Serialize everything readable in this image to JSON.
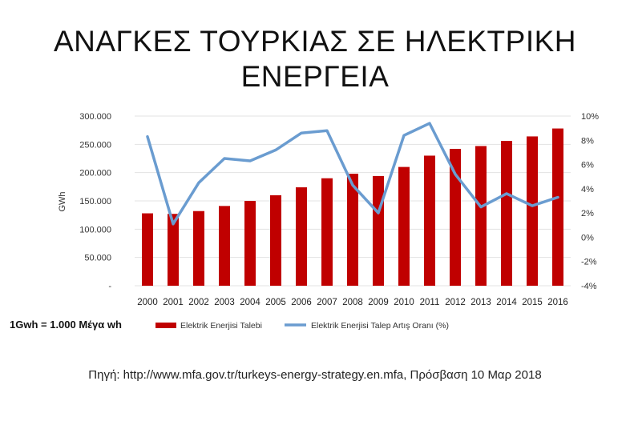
{
  "slide": {
    "title_line1": "ΑΝΑΓΚΕΣ ΤΟΥΡΚΙΑΣ ΣΕ ΗΛΕΚΤΡΙΚΗ",
    "title_line2": "ΕΝΕΡΓΕΙΑ",
    "note": "1Gwh = 1.000 Μέγα wh",
    "source": "Πηγή: http://www.mfa.gov.tr/turkeys-energy-strategy.en.mfa,  Πρόσβαση 10 Μαρ 2018"
  },
  "chart_data": {
    "type": "bar",
    "title": "",
    "xlabel": "",
    "ylabel": "GWh",
    "ylim": [
      0,
      300000
    ],
    "y2lim": [
      -4,
      10
    ],
    "grid": true,
    "legend_position": "bottom",
    "categories": [
      "2000",
      "2001",
      "2002",
      "2003",
      "2004",
      "2005",
      "2006",
      "2007",
      "2008",
      "2009",
      "2010",
      "2011",
      "2012",
      "2013",
      "2014",
      "2015",
      "2016"
    ],
    "y_ticks": [
      "300.000",
      "250.000",
      "200.000",
      "150.000",
      "100.000",
      "50.000",
      "-"
    ],
    "y2_ticks": [
      "10%",
      "8%",
      "6%",
      "4%",
      "2%",
      "0%",
      "-2%",
      "-4%"
    ],
    "series": [
      {
        "name": "Elektrik Enerjisi Talebi",
        "type": "bar",
        "axis": "left",
        "color": "#c00000",
        "values": [
          128000,
          127000,
          132000,
          141000,
          150000,
          160000,
          174000,
          190000,
          198000,
          194000,
          210000,
          230000,
          242000,
          247000,
          256000,
          264000,
          278000
        ]
      },
      {
        "name": "Elektrik Enerjisi Talep Artış Oranı (%)",
        "type": "line",
        "axis": "right",
        "color": "#6a9cd0",
        "values": [
          8.3,
          1.1,
          4.5,
          6.5,
          6.3,
          7.2,
          8.6,
          8.8,
          4.3,
          2.0,
          8.4,
          9.4,
          5.2,
          2.5,
          3.6,
          2.6,
          3.3
        ]
      }
    ]
  }
}
